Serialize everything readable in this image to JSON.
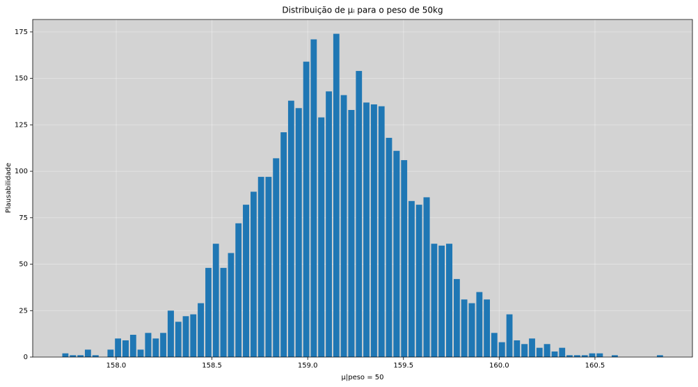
{
  "chart_data": {
    "type": "histogram",
    "title": "Distribuição de μᵢ para o peso de 50kg",
    "xlabel": "μ|peso = 50",
    "ylabel": "Plausabilidade",
    "color": "#1f77b4",
    "background": "#d3d3d3",
    "grid": true,
    "bins": [
      157.715,
      157.754,
      157.794,
      157.833,
      157.872,
      157.912,
      157.951,
      157.99,
      158.029,
      158.069,
      158.108,
      158.147,
      158.187,
      158.226,
      158.265,
      158.305,
      158.344,
      158.383,
      158.422,
      158.462,
      158.501,
      158.54,
      158.58,
      158.619,
      158.658,
      158.698,
      158.737,
      158.776,
      158.815,
      158.855,
      158.894,
      158.933,
      158.973,
      159.012,
      159.051,
      159.091,
      159.13,
      159.169,
      159.208,
      159.248,
      159.287,
      159.326,
      159.366,
      159.405,
      159.444,
      159.484,
      159.523,
      159.562,
      159.601,
      159.641,
      159.68,
      159.719,
      159.759,
      159.798,
      159.837,
      159.877,
      159.916,
      159.955,
      159.994,
      160.034,
      160.073,
      160.112,
      160.152,
      160.191,
      160.23,
      160.27,
      160.309,
      160.348,
      160.387,
      160.427,
      160.466,
      160.505,
      160.545,
      160.584,
      160.623,
      160.663,
      160.702,
      160.741,
      160.78,
      160.82,
      160.859
    ],
    "values": [
      2,
      1,
      1,
      4,
      1,
      0,
      4,
      10,
      9,
      12,
      4,
      13,
      10,
      13,
      25,
      19,
      22,
      23,
      29,
      48,
      61,
      48,
      56,
      72,
      82,
      89,
      97,
      97,
      107,
      121,
      138,
      134,
      159,
      171,
      129,
      143,
      174,
      141,
      133,
      154,
      137,
      136,
      135,
      118,
      111,
      106,
      84,
      82,
      86,
      61,
      60,
      61,
      42,
      31,
      29,
      35,
      31,
      13,
      8,
      23,
      9,
      7,
      10,
      5,
      7,
      3,
      5,
      1,
      1,
      1,
      2,
      2,
      0,
      1,
      0,
      0,
      0,
      0,
      0,
      1
    ],
    "xlim": [
      157.564,
      161.009
    ],
    "ylim": [
      0,
      181.7
    ],
    "xticks": [
      {
        "value": 158,
        "label": "158.0"
      },
      158.5,
      {
        "value": 159,
        "label": "159.0"
      },
      159.5,
      {
        "value": 160,
        "label": "160.0"
      },
      160.5
    ],
    "yticks": [
      0,
      25,
      50,
      75,
      100,
      125,
      150,
      175
    ]
  }
}
